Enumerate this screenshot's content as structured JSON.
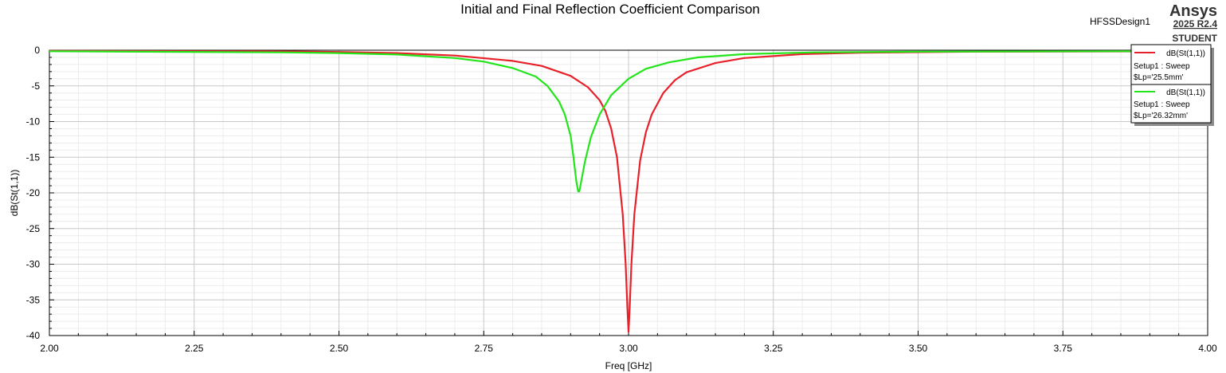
{
  "header": {
    "design_name": "HFSSDesign1",
    "brand": "Ansys",
    "version": "2025 R2.4",
    "edition": "STUDENT"
  },
  "chart_data": {
    "type": "line",
    "title": "Initial and Final Reflection Coefficient Comparison",
    "xlabel": "Freq [GHz]",
    "ylabel": "dB(St(1,1))",
    "xlim": [
      2.0,
      4.0
    ],
    "ylim": [
      -40,
      0
    ],
    "x_ticks": [
      "2.00",
      "2.25",
      "2.50",
      "2.75",
      "3.00",
      "3.25",
      "3.50",
      "3.75",
      "4.00"
    ],
    "y_ticks": [
      "0",
      "-5",
      "-10",
      "-15",
      "-20",
      "-25",
      "-30",
      "-35",
      "-40"
    ],
    "grid": true,
    "legend_position": "top-right",
    "series": [
      {
        "name": "dB(St(1,1))",
        "setup": "Setup1 : Sweep",
        "param": "$Lp='25.5mm'",
        "color": "#e8202a",
        "points": [
          [
            2.0,
            -0.1
          ],
          [
            2.38,
            -0.15
          ],
          [
            2.5,
            -0.25
          ],
          [
            2.6,
            -0.4
          ],
          [
            2.7,
            -0.75
          ],
          [
            2.8,
            -1.5
          ],
          [
            2.85,
            -2.2
          ],
          [
            2.9,
            -3.6
          ],
          [
            2.93,
            -5.2
          ],
          [
            2.95,
            -7.0
          ],
          [
            2.96,
            -8.5
          ],
          [
            2.97,
            -11.0
          ],
          [
            2.98,
            -15.0
          ],
          [
            2.99,
            -23.0
          ],
          [
            2.995,
            -30.0
          ],
          [
            2.998,
            -36.0
          ],
          [
            3.0,
            -39.5
          ],
          [
            3.002,
            -36.0
          ],
          [
            3.005,
            -30.0
          ],
          [
            3.01,
            -23.0
          ],
          [
            3.02,
            -15.5
          ],
          [
            3.03,
            -11.5
          ],
          [
            3.04,
            -9.0
          ],
          [
            3.06,
            -6.0
          ],
          [
            3.08,
            -4.2
          ],
          [
            3.1,
            -3.1
          ],
          [
            3.15,
            -1.8
          ],
          [
            3.2,
            -1.1
          ],
          [
            3.3,
            -0.55
          ],
          [
            3.4,
            -0.35
          ],
          [
            3.6,
            -0.2
          ],
          [
            4.0,
            -0.15
          ]
        ]
      },
      {
        "name": "dB(St(1,1))",
        "setup": "Setup1 : Sweep",
        "param": "$Lp='26.32mm'",
        "color": "#22e51a",
        "points": [
          [
            2.0,
            -0.15
          ],
          [
            2.4,
            -0.3
          ],
          [
            2.5,
            -0.4
          ],
          [
            2.6,
            -0.6
          ],
          [
            2.7,
            -1.1
          ],
          [
            2.75,
            -1.6
          ],
          [
            2.8,
            -2.5
          ],
          [
            2.84,
            -3.7
          ],
          [
            2.86,
            -5.0
          ],
          [
            2.88,
            -7.2
          ],
          [
            2.89,
            -9.0
          ],
          [
            2.9,
            -12.0
          ],
          [
            2.905,
            -15.0
          ],
          [
            2.91,
            -18.5
          ],
          [
            2.913,
            -19.8
          ],
          [
            2.915,
            -19.8
          ],
          [
            2.918,
            -18.5
          ],
          [
            2.925,
            -15.5
          ],
          [
            2.935,
            -12.2
          ],
          [
            2.95,
            -9.0
          ],
          [
            2.97,
            -6.3
          ],
          [
            3.0,
            -4.0
          ],
          [
            3.03,
            -2.6
          ],
          [
            3.07,
            -1.7
          ],
          [
            3.12,
            -1.0
          ],
          [
            3.2,
            -0.55
          ],
          [
            3.32,
            -0.3
          ],
          [
            3.5,
            -0.2
          ],
          [
            4.0,
            -0.12
          ]
        ]
      }
    ]
  }
}
